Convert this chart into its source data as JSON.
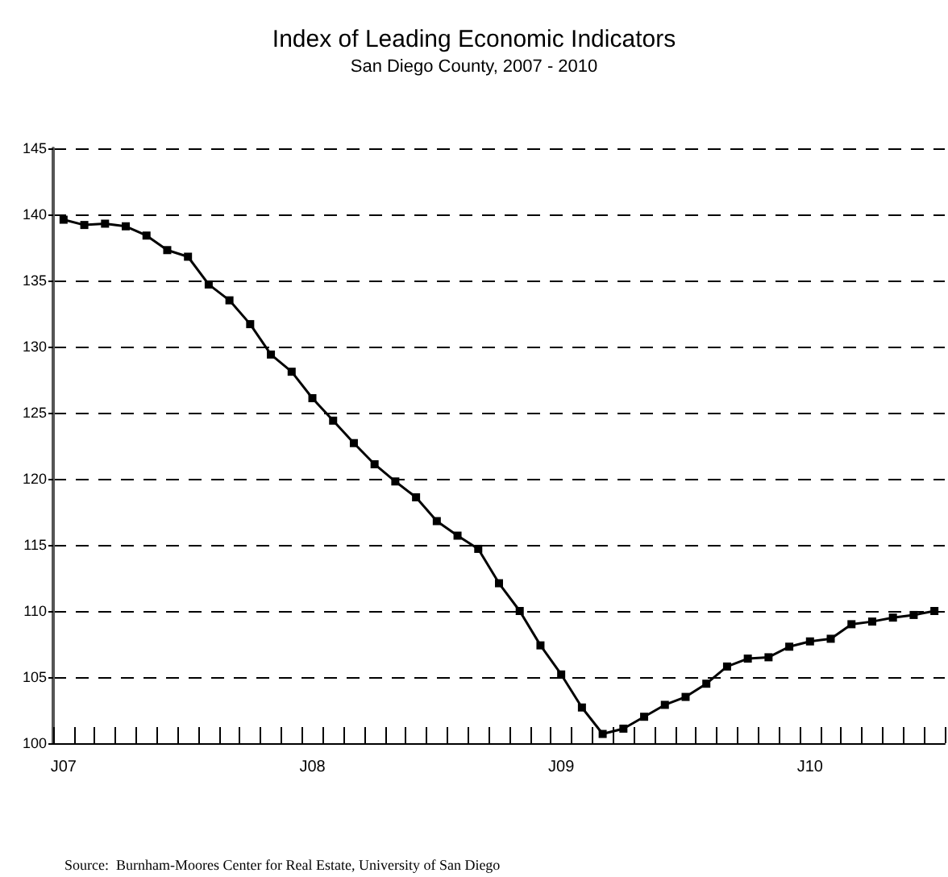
{
  "chart_data": {
    "type": "line",
    "title": "Index of Leading Economic Indicators",
    "subtitle": "San Diego County, 2007 - 2010",
    "categories": [
      "J07",
      null,
      null,
      null,
      null,
      null,
      null,
      null,
      null,
      null,
      null,
      null,
      "J08",
      null,
      null,
      null,
      null,
      null,
      null,
      null,
      null,
      null,
      null,
      null,
      "J09",
      null,
      null,
      null,
      null,
      null,
      null,
      null,
      null,
      null,
      null,
      null,
      "J10",
      null,
      null,
      null,
      null,
      null,
      null
    ],
    "series": [
      {
        "color": "#000000",
        "values": [
          139.6,
          139.2,
          139.3,
          139.1,
          138.4,
          137.3,
          136.8,
          134.7,
          133.5,
          131.7,
          129.4,
          128.1,
          126.1,
          124.4,
          122.7,
          121.1,
          119.8,
          118.6,
          116.8,
          115.7,
          114.7,
          112.1,
          110.0,
          107.4,
          105.2,
          102.7,
          100.7,
          101.1,
          102.0,
          102.9,
          103.5,
          104.5,
          105.8,
          106.4,
          106.5,
          107.3,
          107.7,
          107.9,
          109.0,
          109.2,
          109.5,
          109.7,
          110.0
        ]
      }
    ],
    "ylim": [
      100,
      145
    ],
    "yticks": [
      100,
      105,
      110,
      115,
      120,
      125,
      130,
      135,
      140,
      145
    ],
    "grid": "y",
    "marker": "square",
    "line_style": "solid",
    "annotations": [
      "Source:  Burnham-Moores Center for Real Estate, University of San Diego"
    ]
  }
}
